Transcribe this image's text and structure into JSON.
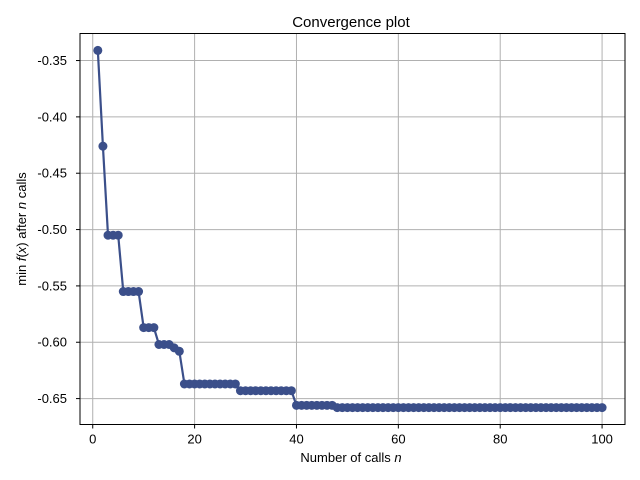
{
  "chart_data": {
    "type": "line",
    "title": "Convergence plot",
    "xlabel": "Number of calls n",
    "ylabel": "min f(x) after n calls",
    "xlabel_parts": {
      "text": "Number of calls ",
      "var": "n"
    },
    "ylabel_parts": {
      "p1": "min ",
      "f": "f",
      "p2": "(",
      "x": "x",
      "p3": ") after ",
      "n": "n",
      "p4": " calls"
    },
    "xlim": [
      -2.5,
      104.5
    ],
    "ylim": [
      -0.673,
      -0.326
    ],
    "xticks": [
      0,
      20,
      40,
      60,
      80,
      100
    ],
    "xtick_labels": [
      "0",
      "20",
      "40",
      "60",
      "80",
      "100"
    ],
    "yticks": [
      -0.35,
      -0.4,
      -0.45,
      -0.5,
      -0.55,
      -0.6,
      -0.65
    ],
    "ytick_labels": [
      "-0.35",
      "-0.40",
      "-0.45",
      "-0.50",
      "-0.55",
      "-0.60",
      "-0.65"
    ],
    "grid": true,
    "color": "#3b4f8a",
    "series": [
      {
        "x": [
          1,
          2,
          3,
          4,
          5,
          6,
          7,
          8,
          9,
          10,
          11,
          12,
          13,
          14,
          15,
          16,
          17,
          18,
          19,
          20,
          21,
          22,
          23,
          24,
          25,
          26,
          27,
          28,
          29,
          30,
          31,
          32,
          33,
          34,
          35,
          36,
          37,
          38,
          39,
          40,
          41,
          42,
          43,
          44,
          45,
          46,
          47,
          48,
          49,
          50,
          51,
          52,
          53,
          54,
          55,
          56,
          57,
          58,
          59,
          60,
          61,
          62,
          63,
          64,
          65,
          66,
          67,
          68,
          69,
          70,
          71,
          72,
          73,
          74,
          75,
          76,
          77,
          78,
          79,
          80,
          81,
          82,
          83,
          84,
          85,
          86,
          87,
          88,
          89,
          90,
          91,
          92,
          93,
          94,
          95,
          96,
          97,
          98,
          99,
          100
        ],
        "values": [
          -0.341,
          -0.426,
          -0.505,
          -0.505,
          -0.505,
          -0.555,
          -0.555,
          -0.555,
          -0.555,
          -0.587,
          -0.587,
          -0.587,
          -0.602,
          -0.602,
          -0.602,
          -0.605,
          -0.608,
          -0.637,
          -0.637,
          -0.637,
          -0.637,
          -0.637,
          -0.637,
          -0.637,
          -0.637,
          -0.637,
          -0.637,
          -0.637,
          -0.643,
          -0.643,
          -0.643,
          -0.643,
          -0.643,
          -0.643,
          -0.643,
          -0.643,
          -0.643,
          -0.643,
          -0.643,
          -0.656,
          -0.656,
          -0.656,
          -0.656,
          -0.656,
          -0.656,
          -0.656,
          -0.656,
          -0.658,
          -0.658,
          -0.658,
          -0.658,
          -0.658,
          -0.658,
          -0.658,
          -0.658,
          -0.658,
          -0.658,
          -0.658,
          -0.658,
          -0.658,
          -0.658,
          -0.658,
          -0.658,
          -0.658,
          -0.658,
          -0.658,
          -0.658,
          -0.658,
          -0.658,
          -0.658,
          -0.658,
          -0.658,
          -0.658,
          -0.658,
          -0.658,
          -0.658,
          -0.658,
          -0.658,
          -0.658,
          -0.658,
          -0.658,
          -0.658,
          -0.658,
          -0.658,
          -0.658,
          -0.658,
          -0.658,
          -0.658,
          -0.658,
          -0.658,
          -0.658,
          -0.658,
          -0.658,
          -0.658,
          -0.658,
          -0.658,
          -0.658,
          -0.658,
          -0.658,
          -0.658
        ]
      }
    ]
  }
}
